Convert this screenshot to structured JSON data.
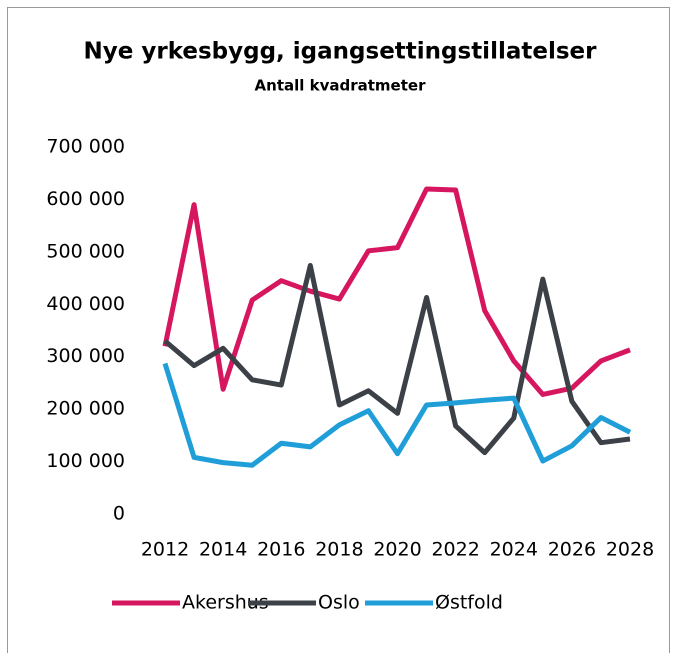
{
  "chart_data": {
    "type": "line",
    "title": "Nye yrkesbygg, igangsettingstillatelser",
    "subtitle": "Antall kvadratmeter",
    "x": [
      2012,
      2013,
      2014,
      2015,
      2016,
      2017,
      2018,
      2019,
      2020,
      2021,
      2022,
      2023,
      2024,
      2025,
      2026,
      2027,
      2028
    ],
    "series": [
      {
        "name": "Akershus",
        "color": "#d6175f",
        "values": [
          320000,
          590000,
          238000,
          408000,
          445000,
          425000,
          410000,
          502000,
          508000,
          620000,
          618000,
          388000,
          292000,
          228000,
          240000,
          292000,
          313000
        ]
      },
      {
        "name": "Oslo",
        "color": "#3c4148",
        "values": [
          330000,
          283000,
          316000,
          256000,
          246000,
          474000,
          208000,
          235000,
          192000,
          413000,
          168000,
          117000,
          183000,
          448000,
          215000,
          136000,
          143000
        ]
      },
      {
        "name": "Østfold",
        "color": "#1f9ed8",
        "values": [
          287000,
          108000,
          98000,
          93000,
          135000,
          128000,
          170000,
          197000,
          115000,
          208000,
          212000,
          217000,
          221000,
          101000,
          130000,
          184000,
          156000
        ]
      }
    ],
    "xlim": [
      2012,
      2028
    ],
    "xticks": [
      2012,
      2014,
      2016,
      2018,
      2020,
      2022,
      2024,
      2026,
      2028
    ],
    "ylim": [
      0,
      700000
    ],
    "yticks": [
      0,
      {
        "value": 100000,
        "label": "100 000"
      },
      {
        "value": 200000,
        "label": "200 000"
      },
      {
        "value": 300000,
        "label": "300 000"
      },
      {
        "value": 400000,
        "label": "400 000"
      },
      {
        "value": 500000,
        "label": "500 000"
      },
      {
        "value": 600000,
        "label": "600 000"
      },
      {
        "value": 700000,
        "label": "700 000"
      }
    ],
    "legend": "bottom"
  }
}
